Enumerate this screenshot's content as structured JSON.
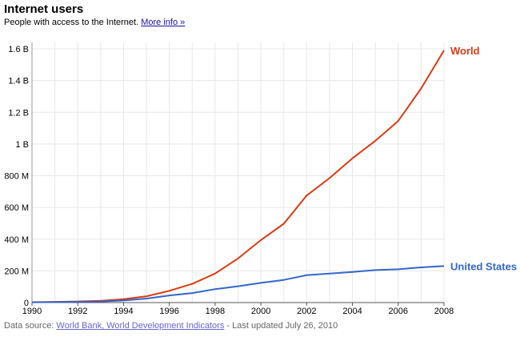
{
  "header": {
    "title": "Internet users",
    "subtitle": "People with access to the Internet.",
    "more_info_link": "More info »"
  },
  "footer": {
    "prefix": "Data source: ",
    "source_link": "World Bank, World Development Indicators",
    "suffix": " - Last updated July 26, 2010"
  },
  "chart_data": {
    "type": "line",
    "title": "Internet users",
    "subtitle": "People with access to the Internet.",
    "xlabel": "",
    "ylabel": "",
    "xlim": [
      1990,
      2008
    ],
    "ylim": [
      0,
      1600000000
    ],
    "x_ticks": [
      1990,
      1992,
      1994,
      1996,
      1998,
      2000,
      2002,
      2004,
      2006,
      2008
    ],
    "y_ticks": [
      {
        "value": 0,
        "label": "0"
      },
      {
        "value": 200000000,
        "label": "200 M"
      },
      {
        "value": 400000000,
        "label": "400 M"
      },
      {
        "value": 600000000,
        "label": "600 M"
      },
      {
        "value": 800000000,
        "label": "800 M"
      },
      {
        "value": 1000000000,
        "label": "1 B"
      },
      {
        "value": 1200000000,
        "label": "1.2 B"
      },
      {
        "value": 1400000000,
        "label": "1.4 B"
      },
      {
        "value": 1600000000,
        "label": "1.6 B"
      }
    ],
    "grid": true,
    "legend": "direct labels at line ends (right)",
    "series": [
      {
        "name": "World",
        "color": "#dc3912",
        "x": [
          1990,
          1991,
          1992,
          1993,
          1994,
          1995,
          1996,
          1997,
          1998,
          1999,
          2000,
          2001,
          2002,
          2003,
          2004,
          2005,
          2006,
          2007,
          2008
        ],
        "values": [
          2600000,
          4400000,
          7000000,
          11000000,
          21000000,
          40000000,
          74000000,
          118000000,
          183000000,
          278000000,
          394000000,
          497000000,
          675000000,
          785000000,
          910000000,
          1020000000,
          1145000000,
          1350000000,
          1590000000
        ]
      },
      {
        "name": "United States",
        "color": "#3366cc",
        "x": [
          1990,
          1991,
          1992,
          1993,
          1994,
          1995,
          1996,
          1997,
          1998,
          1999,
          2000,
          2001,
          2002,
          2003,
          2004,
          2005,
          2006,
          2007,
          2008
        ],
        "values": [
          2000000,
          3000000,
          4500000,
          6500000,
          13000000,
          25000000,
          45000000,
          60000000,
          85000000,
          103000000,
          124000000,
          143000000,
          173000000,
          183000000,
          193000000,
          205000000,
          210000000,
          222000000,
          230000000
        ]
      }
    ]
  }
}
